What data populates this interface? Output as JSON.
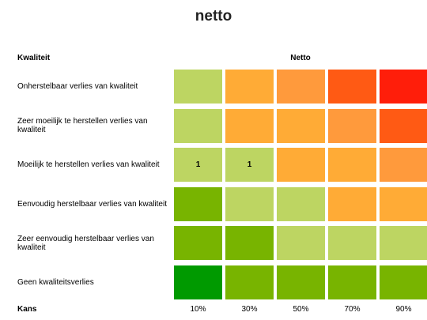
{
  "title": "netto",
  "row_header": "Kwaliteit",
  "column_header": "Netto",
  "axis_label": "Kans",
  "columns": [
    "10%",
    "30%",
    "50%",
    "70%",
    "90%"
  ],
  "rows": [
    {
      "label": "Onherstelbaar verlies van kwaliteit",
      "cells": [
        {
          "color": "#bdd562"
        },
        {
          "color": "#ffab36"
        },
        {
          "color": "#ff9a3c"
        },
        {
          "color": "#ff5a14"
        },
        {
          "color": "#ff1e0a"
        }
      ]
    },
    {
      "label": "Zeer moeilijk te herstellen verlies van kwaliteit",
      "cells": [
        {
          "color": "#bdd562"
        },
        {
          "color": "#ffab36"
        },
        {
          "color": "#ffab36"
        },
        {
          "color": "#ff9a3c"
        },
        {
          "color": "#ff5a14"
        }
      ]
    },
    {
      "label": "Moeilijk te herstellen verlies van kwaliteit",
      "cells": [
        {
          "color": "#bdd562",
          "label": "1"
        },
        {
          "color": "#bdd562",
          "label": "1"
        },
        {
          "color": "#ffab36"
        },
        {
          "color": "#ffab36"
        },
        {
          "color": "#ff9a3c"
        }
      ]
    },
    {
      "label": "Eenvoudig herstelbaar verlies van kwaliteit",
      "cells": [
        {
          "color": "#78b400"
        },
        {
          "color": "#bdd562"
        },
        {
          "color": "#bdd562"
        },
        {
          "color": "#ffab36"
        },
        {
          "color": "#ffab36"
        }
      ]
    },
    {
      "label": "Zeer eenvoudig herstelbaar verlies van kwaliteit",
      "cells": [
        {
          "color": "#78b400"
        },
        {
          "color": "#78b400"
        },
        {
          "color": "#bdd562"
        },
        {
          "color": "#bdd562"
        },
        {
          "color": "#bdd562"
        }
      ]
    },
    {
      "label": "Geen kwaliteitsverlies",
      "cells": [
        {
          "color": "#009a00"
        },
        {
          "color": "#78b400"
        },
        {
          "color": "#78b400"
        },
        {
          "color": "#78b400"
        },
        {
          "color": "#78b400"
        }
      ]
    }
  ]
}
